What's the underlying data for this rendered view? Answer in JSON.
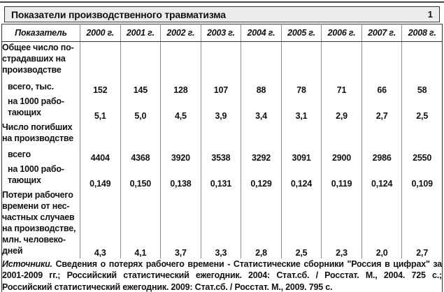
{
  "title": "Показатели производственного травматизма",
  "page_number": "1",
  "table": {
    "header_indicator": "Показатель",
    "years": [
      "2000 г.",
      "2001 г.",
      "2002 г.",
      "2003 г.",
      "2004 г.",
      "2005 г.",
      "2006 г.",
      "2007 г.",
      "2008 г."
    ],
    "rows": [
      {
        "type": "group-label",
        "label": "Общее число по-\nстрадавших на\nпроизводстве"
      },
      {
        "type": "data",
        "label": "всего, тыс.",
        "values": [
          "152",
          "145",
          "128",
          "107",
          "88",
          "78",
          "71",
          "66",
          "58"
        ]
      },
      {
        "type": "data",
        "label": "на 1000 рабо-\nтающих",
        "values": [
          "5,1",
          "5,0",
          "4,5",
          "3,9",
          "3,4",
          "3,1",
          "2,9",
          "2,7",
          "2,5"
        ]
      },
      {
        "type": "group-label",
        "label": "Число погибших\nна производстве"
      },
      {
        "type": "data",
        "label": "всего",
        "values": [
          "4404",
          "4368",
          "3920",
          "3538",
          "3292",
          "3091",
          "2900",
          "2986",
          "2550"
        ]
      },
      {
        "type": "data",
        "label": "на 1000 рабо-\nтающих",
        "values": [
          "0,149",
          "0,150",
          "0,138",
          "0,131",
          "0,129",
          "0,124",
          "0,119",
          "0,124",
          "0,109"
        ]
      },
      {
        "type": "data",
        "label": "Потери рабочего\nвремени от нес-\nчастных случаев\nна производстве,\nмлн. человеко-\nдней",
        "values": [
          "4,3",
          "4,1",
          "3,7",
          "3,3",
          "2,8",
          "2,5",
          "2,3",
          "2,0",
          "2,7"
        ]
      }
    ]
  },
  "sources_label": "Источники.",
  "sources_text": "Сведения о потерях рабочего времени - Статистические сборники \"Россия в цифрах\" за 2001-2009 гг.; Российский статистический ежегодник. 2004: Стат.сб. / Росстат. М., 2004. 725 с.; Российский статистический ежегодник. 2009: Стат.сб. / Росстат. М., 2009. 795 с."
}
